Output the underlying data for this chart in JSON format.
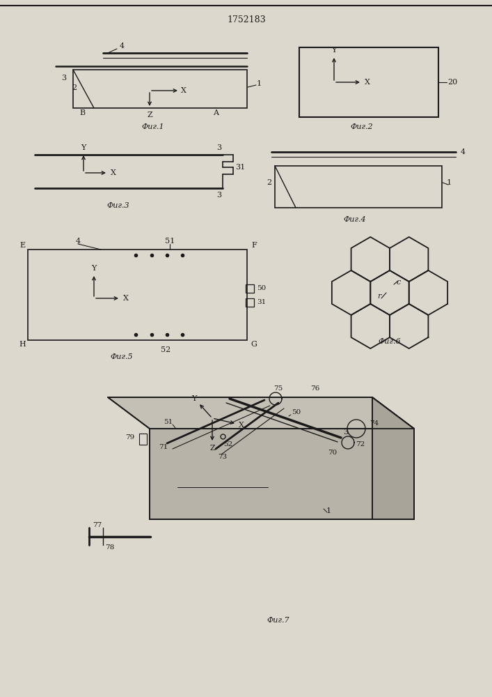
{
  "title": "1752183",
  "bg_color": "#ddd8ce",
  "line_color": "#1a1a1a",
  "text_color": "#1a1a1a",
  "fig_labels": [
    "Фиг.1",
    "Фиг.2",
    "Фиг.3",
    "Фиг.4",
    "Фиг.5",
    "Фиг.6",
    "Фиг.7"
  ]
}
